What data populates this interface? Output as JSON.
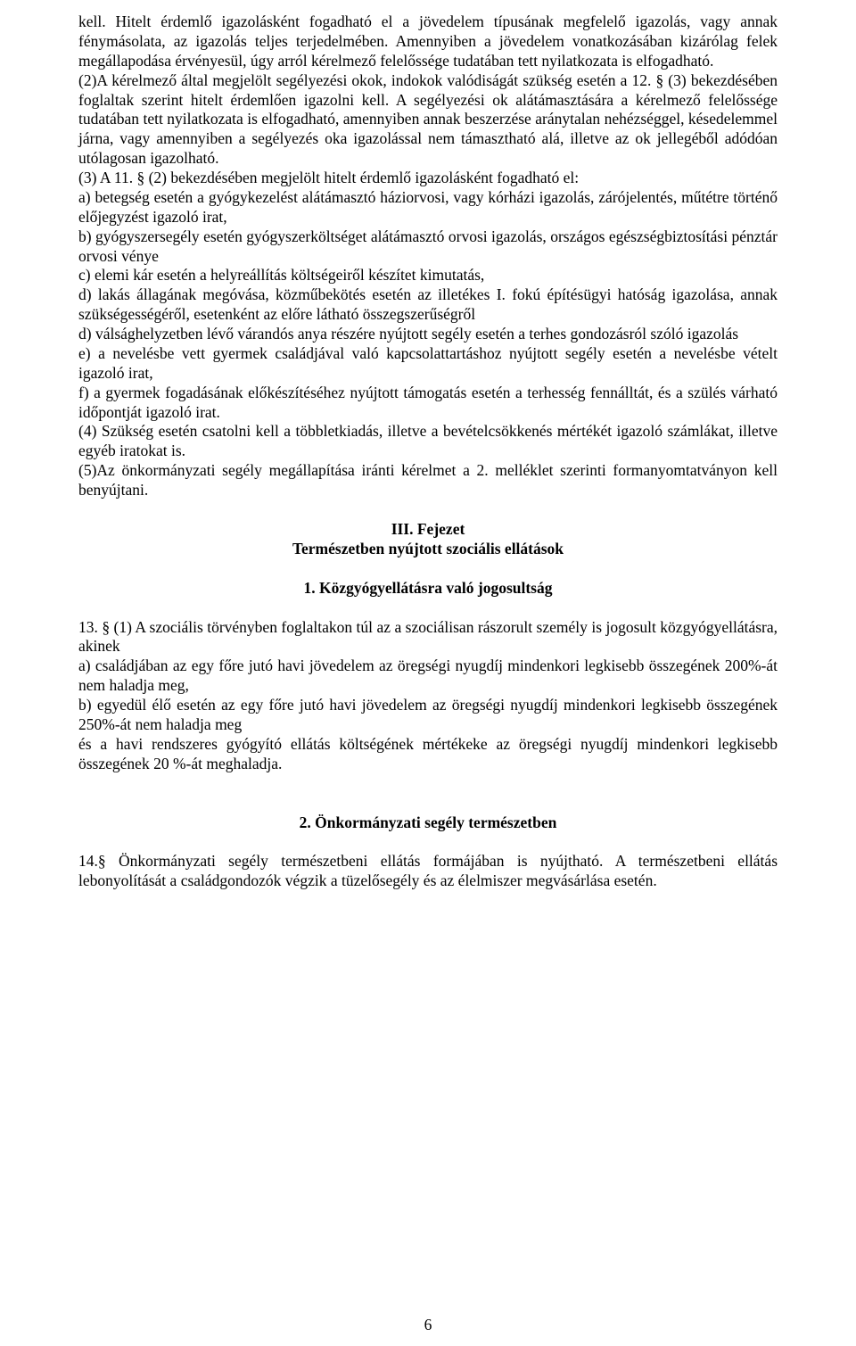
{
  "para1": "kell. Hitelt érdemlő igazolásként fogadható el a jövedelem típusának megfelelő igazolás, vagy annak fénymásolata, az igazolás teljes terjedelmében. Amennyiben a jövedelem vonatkozásában kizárólag felek megállapodása érvényesül, úgy arról kérelmező felelőssége tudatában tett nyilatkozata is elfogadható.",
  "para2": "(2)A kérelmező által megjelölt segélyezési okok, indokok valódiságát szükség esetén a 12. § (3) bekezdésében foglaltak szerint hitelt érdemlően igazolni kell. A segélyezési ok alátámasztására a kérelmező felelőssége tudatában tett nyilatkozata is elfogadható, amennyiben annak beszerzése aránytalan nehézséggel, késedelemmel járna, vagy amennyiben a segélyezés oka igazolással nem támasztható alá, illetve az ok jellegéből adódóan utólagosan igazolható.",
  "para3": "(3) A 11. § (2) bekezdésében megjelölt hitelt érdemlő igazolásként fogadható el:",
  "item_a": "a) betegség esetén a gyógykezelést alátámasztó háziorvosi, vagy kórházi igazolás, zárójelentés, műtétre történő előjegyzést igazoló irat,",
  "item_b": "b) gyógyszersegély esetén gyógyszerköltséget alátámasztó orvosi igazolás, országos egészségbiztosítási pénztár orvosi vénye",
  "item_c": "c) elemi kár esetén a helyreállítás költségeiről készítet kimutatás,",
  "item_d": "d) lakás állagának megóvása, közműbekötés esetén az illetékes I. fokú építésügyi hatóság igazolása, annak szükségességéről, esetenként az előre látható összegszerűségről",
  "item_d2": "d) válsághelyzetben lévő várandós anya részére nyújtott segély esetén a terhes gondozásról szóló igazolás",
  "item_e": "e) a nevelésbe vett gyermek családjával való kapcsolattartáshoz nyújtott segély esetén a nevelésbe vételt igazoló irat,",
  "item_f": "f) a gyermek fogadásának előkészítéséhez nyújtott támogatás esetén a terhesség fennálltát, és a szülés várható időpontját igazoló irat.",
  "para4": "(4) Szükség esetén csatolni kell a többletkiadás, illetve a bevételcsökkenés mértékét igazoló számlákat, illetve egyéb iratokat is.",
  "para5": "(5)Az önkormányzati segély megállapítása iránti kérelmet a 2. melléklet szerinti formanyomtatványon kell benyújtani.",
  "chapter_title": "III. Fejezet",
  "chapter_sub": "Természetben nyújtott szociális ellátások",
  "sec1_title": "1. Közgyógyellátásra való jogosultság",
  "sec1_p1": "13. § (1) A szociális törvényben foglaltakon túl az a szociálisan rászorult személy is jogosult közgyógyellátásra, akinek",
  "sec1_a": "a) családjában az egy főre jutó havi jövedelem az öregségi nyugdíj mindenkori legkisebb összegének 200%-át nem haladja meg,",
  "sec1_b": "b) egyedül élő esetén az egy főre jutó havi jövedelem az öregségi nyugdíj mindenkori legkisebb összegének 250%-át nem haladja meg",
  "sec1_tail": "és a havi rendszeres gyógyító ellátás költségének mértékeke az öregségi nyugdíj mindenkori legkisebb összegének 20 %-át meghaladja.",
  "sec2_title": "2.   Önkormányzati segély természetben",
  "sec2_p1": "14.§ Önkormányzati segély természetbeni ellátás formájában is nyújtható. A természetbeni ellátás lebonyolítását a családgondozók végzik a tüzelősegély és az élelmiszer megvásárlása esetén.",
  "page_number": "6"
}
